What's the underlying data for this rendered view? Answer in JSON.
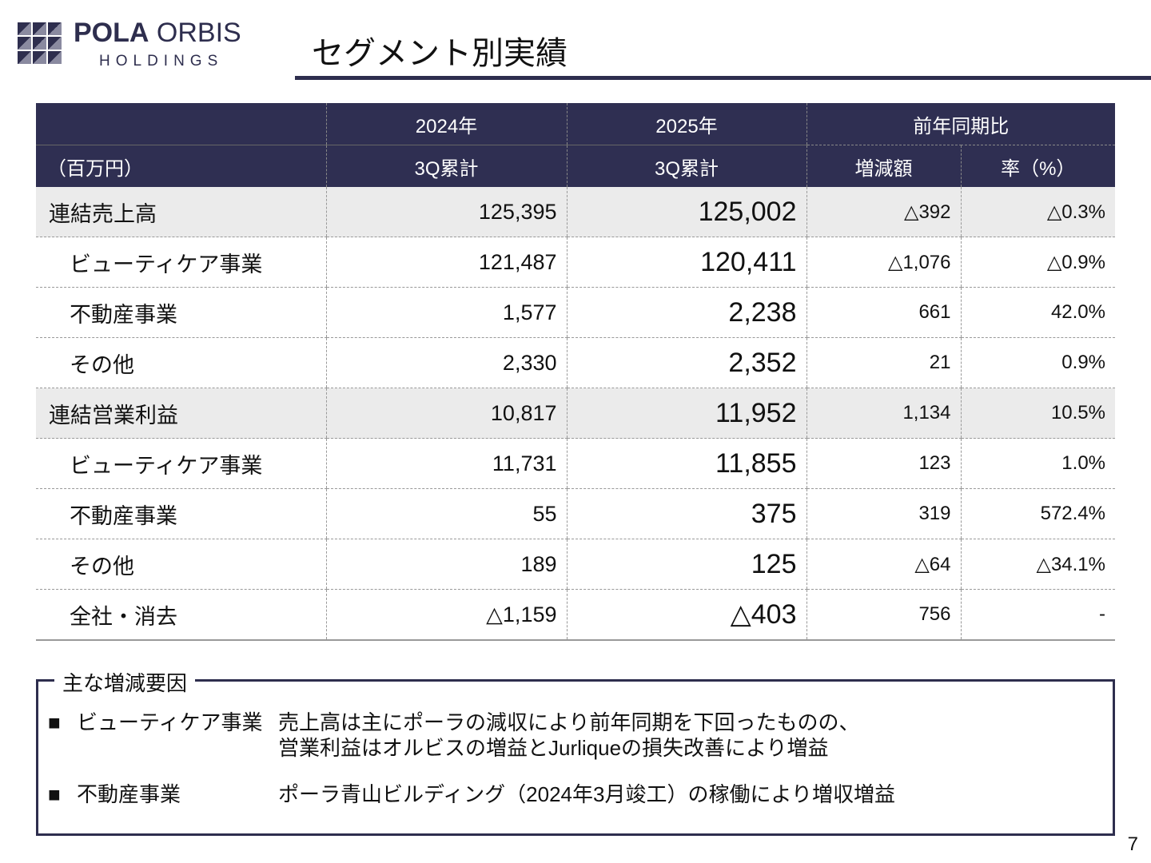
{
  "logo": {
    "text": "POLA ORBIS HOLDINGS",
    "brand1": "POLA",
    "brand2": "ORBIS",
    "sub": "HOLDINGS"
  },
  "title": "セグメント別実績",
  "table": {
    "unit": "（百万円）",
    "headers": {
      "y2024": "2024年",
      "y2025": "2025年",
      "yoy": "前年同期比",
      "q2024": "3Q累計",
      "q2025": "3Q累計",
      "diff": "増減額",
      "rate": "率（%）"
    },
    "rows": [
      {
        "label": "連結売上高",
        "v2024": "125,395",
        "v2025": "125,002",
        "diff": "△392",
        "rate": "△0.3%",
        "highlight": true
      },
      {
        "label": "ビューティケア事業",
        "v2024": "121,487",
        "v2025": "120,411",
        "diff": "△1,076",
        "rate": "△0.9%"
      },
      {
        "label": "不動産事業",
        "v2024": "1,577",
        "v2025": "2,238",
        "diff": "661",
        "rate": "42.0%"
      },
      {
        "label": "その他",
        "v2024": "2,330",
        "v2025": "2,352",
        "diff": "21",
        "rate": "0.9%"
      },
      {
        "label": "連結営業利益",
        "v2024": "10,817",
        "v2025": "11,952",
        "diff": "1,134",
        "rate": "10.5%",
        "highlight": true
      },
      {
        "label": "ビューティケア事業",
        "v2024": "11,731",
        "v2025": "11,855",
        "diff": "123",
        "rate": "1.0%"
      },
      {
        "label": "不動産事業",
        "v2024": "55",
        "v2025": "375",
        "diff": "319",
        "rate": "572.4%"
      },
      {
        "label": "その他",
        "v2024": "189",
        "v2025": "125",
        "diff": "△64",
        "rate": "△34.1%"
      },
      {
        "label": "全社・消去",
        "v2024": "△1,159",
        "v2025": "△403",
        "diff": "756",
        "rate": "-"
      }
    ]
  },
  "factors": {
    "heading": "主な増減要因",
    "items": [
      {
        "bullet": "■",
        "segment": "ビューティケア事業",
        "line1": "売上高は主にポーラの減収により前年同期を下回ったものの、",
        "line2": "営業利益はオルビスの増益とJurliqueの損失改善により増益"
      },
      {
        "bullet": "■",
        "segment": "不動産事業",
        "line1": "ポーラ青山ビルディング（2024年3月竣工）の稼働により増収増益"
      }
    ]
  },
  "page_number": "7"
}
